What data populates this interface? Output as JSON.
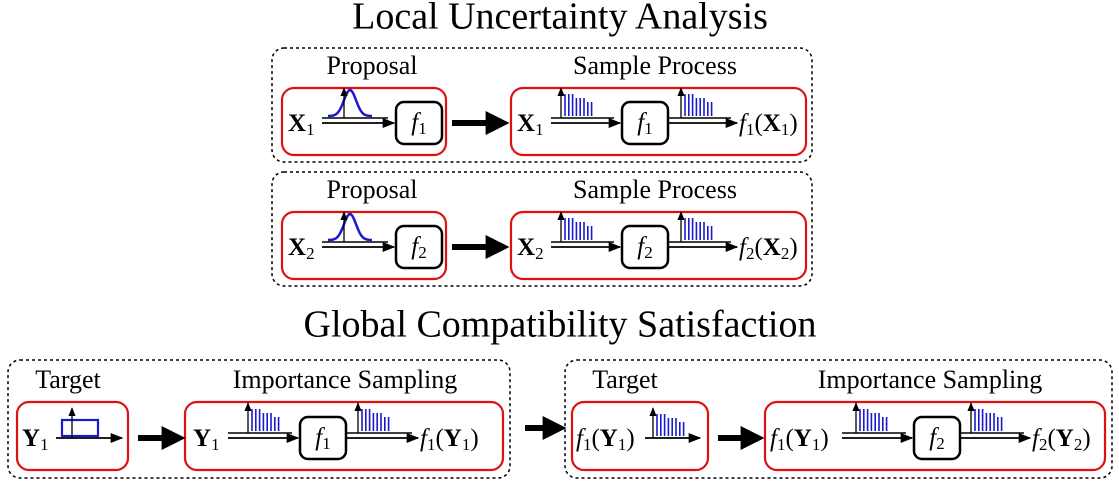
{
  "local": {
    "title": "Local Uncertainty Analysis",
    "panels": [
      {
        "proposal": {
          "label": "Proposal",
          "input": [
            {
              "t": "X",
              "s": "bf"
            },
            {
              "t": "1",
              "s": "sub"
            }
          ],
          "func": [
            {
              "t": "f",
              "s": "it"
            },
            {
              "t": "1",
              "s": "sub"
            }
          ]
        },
        "sample": {
          "label": "Sample Process",
          "input": [
            {
              "t": "X",
              "s": "bf"
            },
            {
              "t": "1",
              "s": "sub"
            }
          ],
          "func": [
            {
              "t": "f",
              "s": "it"
            },
            {
              "t": "1",
              "s": "sub"
            }
          ],
          "output": [
            {
              "t": "f",
              "s": "it"
            },
            {
              "t": "1",
              "s": "sub"
            },
            {
              "t": "(",
              "s": "rm"
            },
            {
              "t": "X",
              "s": "bf"
            },
            {
              "t": "1",
              "s": "sub"
            },
            {
              "t": ")",
              "s": "rm"
            }
          ]
        }
      },
      {
        "proposal": {
          "label": "Proposal",
          "input": [
            {
              "t": "X",
              "s": "bf"
            },
            {
              "t": "2",
              "s": "sub"
            }
          ],
          "func": [
            {
              "t": "f",
              "s": "it"
            },
            {
              "t": "2",
              "s": "sub"
            }
          ]
        },
        "sample": {
          "label": "Sample Process",
          "input": [
            {
              "t": "X",
              "s": "bf"
            },
            {
              "t": "2",
              "s": "sub"
            }
          ],
          "func": [
            {
              "t": "f",
              "s": "it"
            },
            {
              "t": "2",
              "s": "sub"
            }
          ],
          "output": [
            {
              "t": "f",
              "s": "it"
            },
            {
              "t": "2",
              "s": "sub"
            },
            {
              "t": "(",
              "s": "rm"
            },
            {
              "t": "X",
              "s": "bf"
            },
            {
              "t": "2",
              "s": "sub"
            },
            {
              "t": ")",
              "s": "rm"
            }
          ]
        }
      }
    ]
  },
  "global": {
    "title": "Global Compatibility Satisfaction",
    "panels": [
      {
        "target": {
          "label": "Target",
          "input": [
            {
              "t": "Y",
              "s": "bf"
            },
            {
              "t": "1",
              "s": "sub"
            }
          ]
        },
        "sampling": {
          "label": "Importance Sampling",
          "input": [
            {
              "t": "Y",
              "s": "bf"
            },
            {
              "t": "1",
              "s": "sub"
            }
          ],
          "func": [
            {
              "t": "f",
              "s": "it"
            },
            {
              "t": "1",
              "s": "sub"
            }
          ],
          "output": [
            {
              "t": "f",
              "s": "it"
            },
            {
              "t": "1",
              "s": "sub"
            },
            {
              "t": "(",
              "s": "rm"
            },
            {
              "t": "Y",
              "s": "bf"
            },
            {
              "t": "1",
              "s": "sub"
            },
            {
              "t": ")",
              "s": "rm"
            }
          ]
        }
      },
      {
        "target": {
          "label": "Target",
          "input": [
            {
              "t": "f",
              "s": "it"
            },
            {
              "t": "1",
              "s": "sub"
            },
            {
              "t": "(",
              "s": "rm"
            },
            {
              "t": "Y",
              "s": "bf"
            },
            {
              "t": "1",
              "s": "sub"
            },
            {
              "t": ")",
              "s": "rm"
            }
          ]
        },
        "sampling": {
          "label": "Importance Sampling",
          "input": [
            {
              "t": "f",
              "s": "it"
            },
            {
              "t": "1",
              "s": "sub"
            },
            {
              "t": "(",
              "s": "rm"
            },
            {
              "t": "Y",
              "s": "bf"
            },
            {
              "t": "1",
              "s": "sub"
            },
            {
              "t": ")",
              "s": "rm"
            }
          ],
          "func": [
            {
              "t": "f",
              "s": "it"
            },
            {
              "t": "2",
              "s": "sub"
            }
          ],
          "output": [
            {
              "t": "f",
              "s": "it"
            },
            {
              "t": "2",
              "s": "sub"
            },
            {
              "t": "(",
              "s": "rm"
            },
            {
              "t": "Y",
              "s": "bf"
            },
            {
              "t": "2",
              "s": "sub"
            },
            {
              "t": ")",
              "s": "rm"
            }
          ]
        }
      }
    ]
  }
}
